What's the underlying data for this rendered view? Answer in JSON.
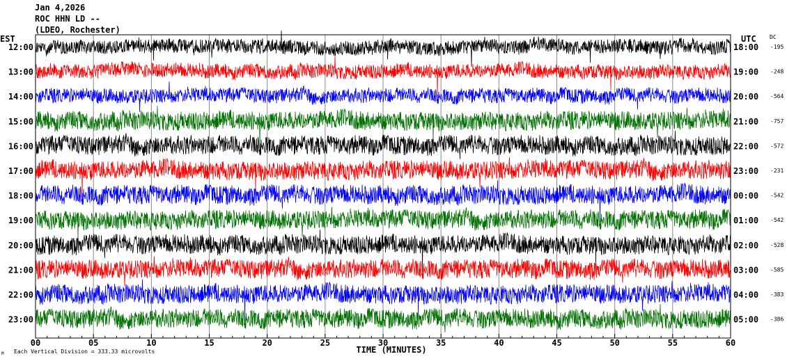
{
  "header": {
    "date": "Jan 4,2026",
    "station": "ROC HHN LD --",
    "network": "(LDEO, Rochester)"
  },
  "chart_data": {
    "type": "line",
    "title": "Jan 4,2026 ROC HHN LD -- (LDEO, Rochester)",
    "xlabel": "TIME (MINUTES)",
    "xlim": [
      0,
      60
    ],
    "x_ticks": [
      "00",
      "05",
      "10",
      "15",
      "20",
      "25",
      "30",
      "35",
      "40",
      "45",
      "50",
      "55",
      "60"
    ],
    "left_axis_label": "EST",
    "right_axis_label": "UTC",
    "dc_label": "DC",
    "scale_note": "Each Vertical Division =  333.33 microvolts",
    "scale_mark": "M",
    "grid": true,
    "colors": [
      "#000000",
      "#ff0000",
      "#0000ff",
      "#007000"
    ],
    "rows": [
      {
        "est": "12:00",
        "utc": "18:00",
        "dc": "-195"
      },
      {
        "est": "13:00",
        "utc": "19:00",
        "dc": "-248"
      },
      {
        "est": "14:00",
        "utc": "20:00",
        "dc": "-564"
      },
      {
        "est": "15:00",
        "utc": "21:00",
        "dc": "-757"
      },
      {
        "est": "16:00",
        "utc": "22:00",
        "dc": "-572"
      },
      {
        "est": "17:00",
        "utc": "23:00",
        "dc": "-231"
      },
      {
        "est": "18:00",
        "utc": "00:00",
        "dc": "-542"
      },
      {
        "est": "19:00",
        "utc": "01:00",
        "dc": "-542"
      },
      {
        "est": "20:00",
        "utc": "02:00",
        "dc": "-528"
      },
      {
        "est": "21:00",
        "utc": "03:00",
        "dc": "-585"
      },
      {
        "est": "22:00",
        "utc": "04:00",
        "dc": "-383"
      },
      {
        "est": "23:00",
        "utc": "05:00",
        "dc": "-386"
      }
    ]
  }
}
